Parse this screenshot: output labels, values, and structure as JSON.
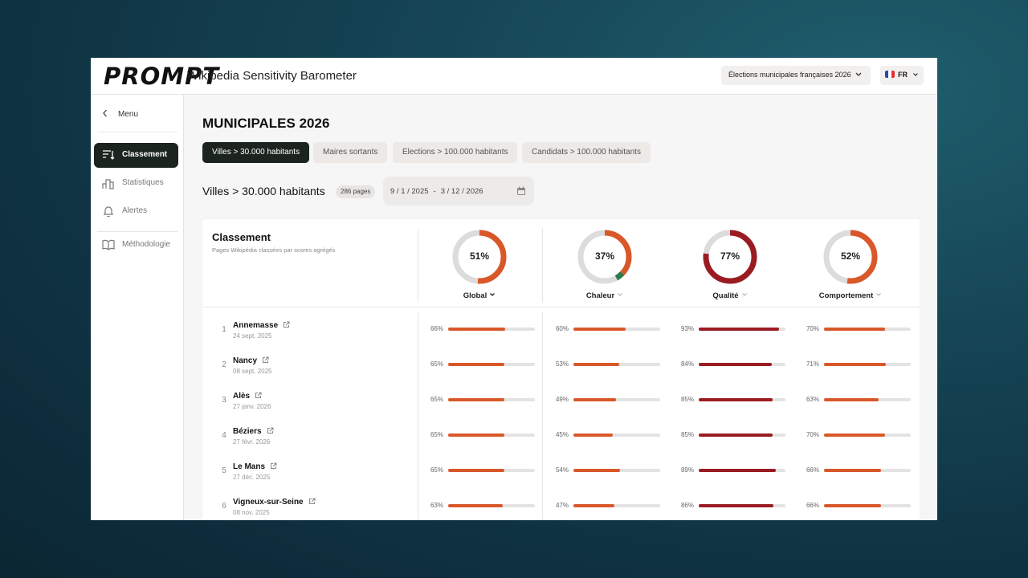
{
  "header": {
    "logo": "PROMPT",
    "app_title": "Wikipedia Sensitivity Barometer",
    "election_select": "Élections municipales françaises 2026",
    "language": "FR"
  },
  "sidebar": {
    "back_label": "Menu",
    "items": [
      {
        "label": "Classement",
        "icon": "ranking-icon"
      },
      {
        "label": "Statistiques",
        "icon": "bar-chart-icon"
      },
      {
        "label": "Alertes",
        "icon": "bell-icon"
      },
      {
        "label": "Méthodologie",
        "icon": "book-icon"
      }
    ]
  },
  "main": {
    "title": "MUNICIPALES 2026",
    "tabs": [
      {
        "label": "Villes > 30.000 habitants"
      },
      {
        "label": "Maires sortants"
      },
      {
        "label": "Elections > 100.000 habitants"
      },
      {
        "label": "Candidats > 100.000 habitants"
      }
    ],
    "section_title": "Villes > 30.000 habitants",
    "pages_badge": "286 pages",
    "date_from": "9 / 1 / 2025",
    "date_separator": "-",
    "date_to": "3 / 12 / 2026"
  },
  "card": {
    "title": "Classement",
    "subtitle": "Pages Wikipédia classées par scores agrégés",
    "metrics": [
      {
        "label": "Global",
        "pct_label": "51%",
        "value": 51,
        "color": "#d9582a",
        "active": true
      },
      {
        "label": "Chaleur",
        "pct_label": "37%",
        "value": 37,
        "color": "#d9582a",
        "active": false
      },
      {
        "label": "Qualité",
        "pct_label": "77%",
        "value": 77,
        "color": "#9a1c22",
        "active": false
      },
      {
        "label": "Comportement",
        "pct_label": "52%",
        "value": 52,
        "color": "#d9582a",
        "active": false
      }
    ],
    "rows": [
      {
        "rank": "1",
        "city": "Annemasse",
        "date": "24 sept. 2025",
        "scores": [
          "66%",
          "60%",
          "93%",
          "70%"
        ]
      },
      {
        "rank": "2",
        "city": "Nancy",
        "date": "08 sept. 2025",
        "scores": [
          "65%",
          "53%",
          "84%",
          "71%"
        ]
      },
      {
        "rank": "3",
        "city": "Alès",
        "date": "27 janv. 2026",
        "scores": [
          "65%",
          "49%",
          "85%",
          "63%"
        ]
      },
      {
        "rank": "4",
        "city": "Béziers",
        "date": "27 févr. 2026",
        "scores": [
          "65%",
          "45%",
          "85%",
          "70%"
        ]
      },
      {
        "rank": "5",
        "city": "Le Mans",
        "date": "27 déc. 2025",
        "scores": [
          "65%",
          "54%",
          "89%",
          "66%"
        ]
      },
      {
        "rank": "6",
        "city": "Vigneux-sur-Seine",
        "date": "08 nov. 2025",
        "scores": [
          "63%",
          "47%",
          "86%",
          "66%"
        ]
      }
    ]
  },
  "colors": {
    "accent_orange": "#d9582a",
    "accent_dark_red": "#9a1c22",
    "chaleur_green": "#2d7a4a",
    "active_dark": "#1c2420"
  }
}
